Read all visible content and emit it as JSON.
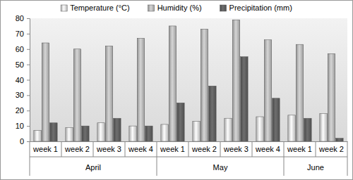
{
  "chart_data": {
    "type": "bar",
    "categories": [
      "week 1",
      "week 2",
      "week 3",
      "week 4",
      "week 1",
      "week 2",
      "week 3",
      "week 4",
      "week 1",
      "week 2"
    ],
    "groups": [
      "April",
      "April",
      "April",
      "April",
      "May",
      "May",
      "May",
      "May",
      "June",
      "June"
    ],
    "series": [
      {
        "name": "Temperature (°C)",
        "color": "#d4d4d4",
        "values": [
          7,
          9,
          12,
          10,
          11,
          13,
          15,
          16,
          17,
          18
        ]
      },
      {
        "name": "Humidity (%)",
        "color": "#b3b3b3",
        "values": [
          64,
          60,
          62,
          67,
          75,
          73,
          79,
          66,
          63,
          57
        ]
      },
      {
        "name": "Precipitation (mm)",
        "color": "#5c5c5c",
        "values": [
          12,
          10,
          15,
          10,
          25,
          36,
          55,
          28,
          15,
          2
        ]
      }
    ],
    "ylim": [
      0,
      80
    ],
    "yticks": [
      0,
      10,
      20,
      30,
      40,
      50,
      60,
      70,
      80
    ],
    "grid": false,
    "legend": "top"
  }
}
